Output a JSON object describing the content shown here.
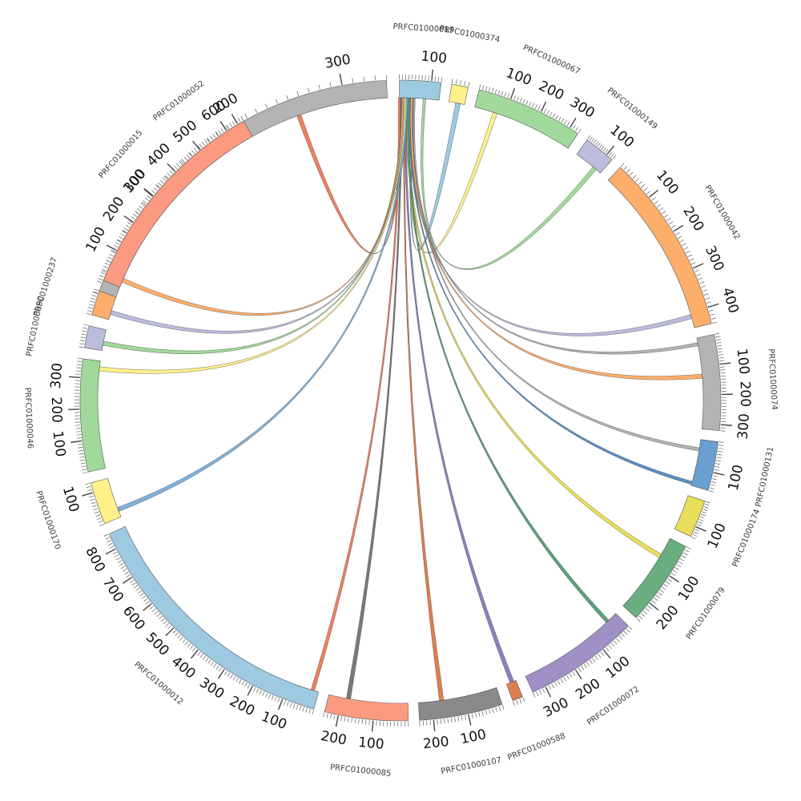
{
  "chart_data": {
    "type": "chord",
    "segments": [
      {
        "id": "PRFC01000052",
        "length": 340,
        "color": "#b3b3b3",
        "start_deg": -70.5,
        "end_deg": -2.5,
        "ticks": [
          100,
          200,
          300
        ]
      },
      {
        "id": "PRFC01000019",
        "length": 130,
        "color": "#9ecae1",
        "start_deg": -0.2,
        "end_deg": 7.3,
        "ticks": [
          100
        ]
      },
      {
        "id": "PRFC01000374",
        "length": 40,
        "color": "#fff08a",
        "start_deg": 9.2,
        "end_deg": 12.2,
        "ticks": []
      },
      {
        "id": "PRFC01000067",
        "length": 330,
        "color": "#a1d99b",
        "start_deg": 14.2,
        "end_deg": 33.6,
        "ticks": [
          100,
          200,
          300
        ]
      },
      {
        "id": "PRFC01000149",
        "length": 130,
        "color": "#bcbddc",
        "start_deg": 35.6,
        "end_deg": 41.3,
        "ticks": [
          100
        ]
      },
      {
        "id": "PRFC01000042",
        "length": 440,
        "color": "#fdae6b",
        "start_deg": 43.3,
        "end_deg": 76.1,
        "ticks": [
          100,
          200,
          300,
          400
        ]
      },
      {
        "id": "PRFC01000074",
        "length": 320,
        "color": "#b3b3b3",
        "start_deg": 78.1,
        "end_deg": 95.4,
        "ticks": [
          100,
          200,
          300
        ]
      },
      {
        "id": "PRFC01000131",
        "length": 160,
        "color": "#6a9fcf",
        "start_deg": 97.4,
        "end_deg": 106.3,
        "ticks": [
          100
        ]
      },
      {
        "id": "PRFC01000174",
        "length": 140,
        "color": "#e8de59",
        "start_deg": 108.3,
        "end_deg": 115.1,
        "ticks": [
          100
        ]
      },
      {
        "id": "PRFC01000079",
        "length": 260,
        "color": "#6aad7e",
        "start_deg": 117.1,
        "end_deg": 132.7,
        "ticks": [
          100,
          200
        ]
      },
      {
        "id": "PRFC01000072",
        "length": 340,
        "color": "#9e91c6",
        "start_deg": 134.7,
        "end_deg": 155.6,
        "ticks": [
          100,
          200,
          300
        ]
      },
      {
        "id": "PRFC01000588",
        "length": 30,
        "color": "#e07e4f",
        "start_deg": 157.6,
        "end_deg": 159.5,
        "ticks": []
      },
      {
        "id": "PRFC01000107",
        "length": 240,
        "color": "#8a8a8a",
        "start_deg": 161.5,
        "end_deg": 176.6,
        "ticks": [
          100,
          200
        ]
      },
      {
        "id": "PRFC01000085",
        "length": 240,
        "color": "#fb9a80",
        "start_deg": 178.6,
        "end_deg": 193.7,
        "ticks": [
          100,
          200
        ]
      },
      {
        "id": "PRFC01000012",
        "length": 850,
        "color": "#9ecae1",
        "start_deg": 195.7,
        "end_deg": 245.4,
        "ticks": [
          100,
          200,
          300,
          400,
          500,
          600,
          700,
          800
        ]
      },
      {
        "id": "PRFC01000170",
        "length": 130,
        "color": "#fff08a",
        "start_deg": 247.4,
        "end_deg": 255.1,
        "ticks": [
          100
        ]
      },
      {
        "id": "PRFC01000046",
        "length": 360,
        "color": "#a1d99b",
        "start_deg": 257.1,
        "end_deg": 277.5,
        "ticks": [
          100,
          200,
          300
        ]
      },
      {
        "id": "PRFC01000090",
        "length": 70,
        "color": "#bcbddc",
        "start_deg": 279.5,
        "end_deg": 283.5,
        "ticks": []
      },
      {
        "id": "PRFC01000237",
        "length": 80,
        "color": "#fdae6b",
        "start_deg": 285.5,
        "end_deg": 290.0,
        "ticks": []
      },
      {
        "id": "PRFC01000015",
        "length": 660,
        "color": "#fb9a80",
        "start_deg": 292.0,
        "end_deg": 330.7,
        "ticks": [
          100,
          200,
          300,
          400,
          500,
          600
        ]
      }
    ],
    "links": [
      {
        "from": "PRFC01000052",
        "from_deg": [
          -20.0,
          -19.2
        ],
        "to_deg": [
          -0.1,
          0.3
        ],
        "color": "#f08060"
      },
      {
        "from": "PRFC01000374",
        "from_deg": [
          10.5,
          11.4
        ],
        "to_deg": [
          2.1,
          2.6
        ],
        "color": "#9ecae1"
      },
      {
        "from": "PRFC01000067",
        "from_deg": [
          17.8,
          18.6
        ],
        "to_deg": [
          1.8,
          2.3
        ],
        "color": "#fff08a"
      },
      {
        "from": "PRFC01000149",
        "from_deg": [
          39.5,
          40.3
        ],
        "to_deg": [
          4.3,
          4.8
        ],
        "color": "#a1d99b"
      },
      {
        "from": "PRFC01000042",
        "from_deg": [
          73.5,
          74.3
        ],
        "to_deg": [
          1.7,
          2.0
        ],
        "color": "#bcbddc"
      },
      {
        "from": "PRFC01000074",
        "from_deg": [
          79.0,
          79.6
        ],
        "to_deg": [
          2.4,
          2.7
        ],
        "color": "#b3b3b3"
      },
      {
        "from": "PRFC01000074",
        "from_deg": [
          85.0,
          85.8
        ],
        "to_deg": [
          1.9,
          2.3
        ],
        "color": "#fdae6b"
      },
      {
        "from": "PRFC01000131",
        "from_deg": [
          99.0,
          99.6
        ],
        "to_deg": [
          2.5,
          2.8
        ],
        "color": "#b3b3b3"
      },
      {
        "from": "PRFC01000131",
        "from_deg": [
          105.5,
          106.1
        ],
        "to_deg": [
          1.6,
          1.9
        ],
        "color": "#5b91c7"
      },
      {
        "from": "PRFC01000079",
        "from_deg": [
          120.5,
          121.3
        ],
        "to_deg": [
          1.0,
          1.4
        ],
        "color": "#e8de59"
      },
      {
        "from": "PRFC01000072",
        "from_deg": [
          136.5,
          137.2
        ],
        "to_deg": [
          1.3,
          1.7
        ],
        "color": "#5aa07a"
      },
      {
        "from": "PRFC01000588",
        "from_deg": [
          158.0,
          158.8
        ],
        "to_deg": [
          0.8,
          1.2
        ],
        "color": "#8e7fbf"
      },
      {
        "from": "PRFC01000107",
        "from_deg": [
          171.8,
          172.6
        ],
        "to_deg": [
          0.6,
          0.9
        ],
        "color": "#e07e4f"
      },
      {
        "from": "PRFC01000085",
        "from_deg": [
          189.5,
          190.3
        ],
        "to_deg": [
          0.0,
          0.4
        ],
        "color": "#7a7a7a"
      },
      {
        "from": "PRFC01000012",
        "from_deg": [
          196.5,
          197.2
        ],
        "to_deg": [
          -0.4,
          0.0
        ],
        "color": "#f08060"
      },
      {
        "from": "PRFC01000170",
        "from_deg": [
          248.5,
          249.3
        ],
        "to_deg": [
          1.0,
          1.4
        ],
        "color": "#7fb0d8"
      },
      {
        "from": "PRFC01000046",
        "from_deg": [
          275.6,
          276.4
        ],
        "to_deg": [
          0.7,
          1.1
        ],
        "color": "#fff08a"
      },
      {
        "from": "PRFC01000090",
        "from_deg": [
          280.5,
          281.3
        ],
        "to_deg": [
          0.2,
          0.5
        ],
        "color": "#a1d99b"
      },
      {
        "from": "PRFC01000237",
        "from_deg": [
          286.5,
          287.3
        ],
        "to_deg": [
          0.5,
          0.8
        ],
        "color": "#bcbddc"
      },
      {
        "from": "PRFC01000015",
        "from_deg": [
          293.0,
          293.8
        ],
        "to_deg": [
          0.3,
          0.6
        ],
        "color": "#fdae6b"
      }
    ]
  }
}
